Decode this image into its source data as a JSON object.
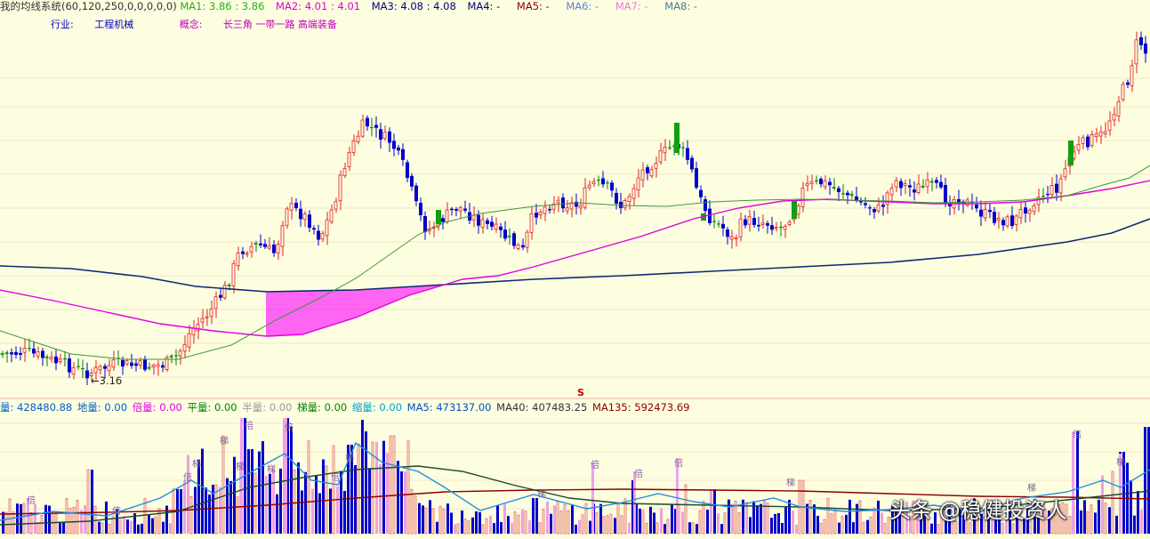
{
  "header": {
    "indicator_name": "我的均线系统(60,120,250,0,0,0,0,0)",
    "ma": [
      {
        "label": "MA1:",
        "value": "3.86 : 3.86",
        "color": "#20b020"
      },
      {
        "label": "MA2:",
        "value": "4.01 : 4.01",
        "color": "#e000e0"
      },
      {
        "label": "MA3:",
        "value": "4.08 : 4.08",
        "color": "#000080"
      },
      {
        "label": "MA4:",
        "value": "-",
        "color": "#000080"
      },
      {
        "label": "MA5:",
        "value": "-",
        "color": "#8b0000"
      },
      {
        "label": "MA6:",
        "value": "-",
        "color": "#6080e0"
      },
      {
        "label": "MA7:",
        "value": "-",
        "color": "#e080e0"
      },
      {
        "label": "MA8:",
        "value": "-",
        "color": "#4080a0"
      }
    ],
    "industry_label": "行业:",
    "industry_value": "工程机械",
    "concept_label": "概念:",
    "concept_value": "长三角 一带一路 高端装备"
  },
  "low_marker": "←3.16",
  "signal_mark": "S",
  "volume_header": [
    {
      "label": "量:",
      "value": "428480.88",
      "color": "#0060c0"
    },
    {
      "label": "地量:",
      "value": "0.00",
      "color": "#0060c0"
    },
    {
      "label": "倍量:",
      "value": "0.00",
      "color": "#e000e0"
    },
    {
      "label": "平量:",
      "value": "0.00",
      "color": "#008000"
    },
    {
      "label": "半量:",
      "value": "0.00",
      "color": "#999999"
    },
    {
      "label": "梯量:",
      "value": "0.00",
      "color": "#008000"
    },
    {
      "label": "缩量:",
      "value": "0.00",
      "color": "#00a0d0"
    },
    {
      "label": "MA5:",
      "value": "473137.00",
      "color": "#0050c0"
    },
    {
      "label": "MA40:",
      "value": "407483.25",
      "color": "#333333"
    },
    {
      "label": "MA135:",
      "value": "592473.69",
      "color": "#8b0000"
    }
  ],
  "tags": {
    "bei": "倍",
    "ti": "梯"
  },
  "watermark": "头条 @稳健投资人",
  "colors": {
    "up": "#e02020",
    "down": "#0000cc",
    "flat": "#008000",
    "ma60": "#3a9a3a",
    "ma120": "#e000e0",
    "ma250": "#0a2a70",
    "fill": "#ff00ff"
  }
}
